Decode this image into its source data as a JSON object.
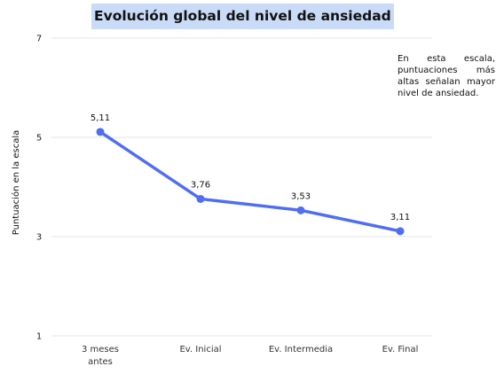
{
  "chart_data": {
    "type": "line",
    "title": "Evolución global del nivel de ansiedad",
    "ylabel": "Puntuación en la escala",
    "xlabel": "",
    "categories": [
      "3 meses antes",
      "Ev. Inicial",
      "Ev. Intermedia",
      "Ev. Final"
    ],
    "category_lines": [
      [
        "3 meses",
        "antes"
      ],
      [
        "Ev. Inicial"
      ],
      [
        "Ev. Intermedia"
      ],
      [
        "Ev. Final"
      ]
    ],
    "series": [
      {
        "values": [
          5.11,
          3.76,
          3.53,
          3.11
        ],
        "labels": [
          "5,11",
          "3,76",
          "3,53",
          "3,11"
        ],
        "color": "#4f6ef0"
      }
    ],
    "yticks": [
      1,
      3,
      5,
      7
    ],
    "ylim": [
      1,
      7
    ],
    "grid": true,
    "annotation": "En esta escala, puntuaciones más altas señalan mayor nivel de ansiedad."
  }
}
